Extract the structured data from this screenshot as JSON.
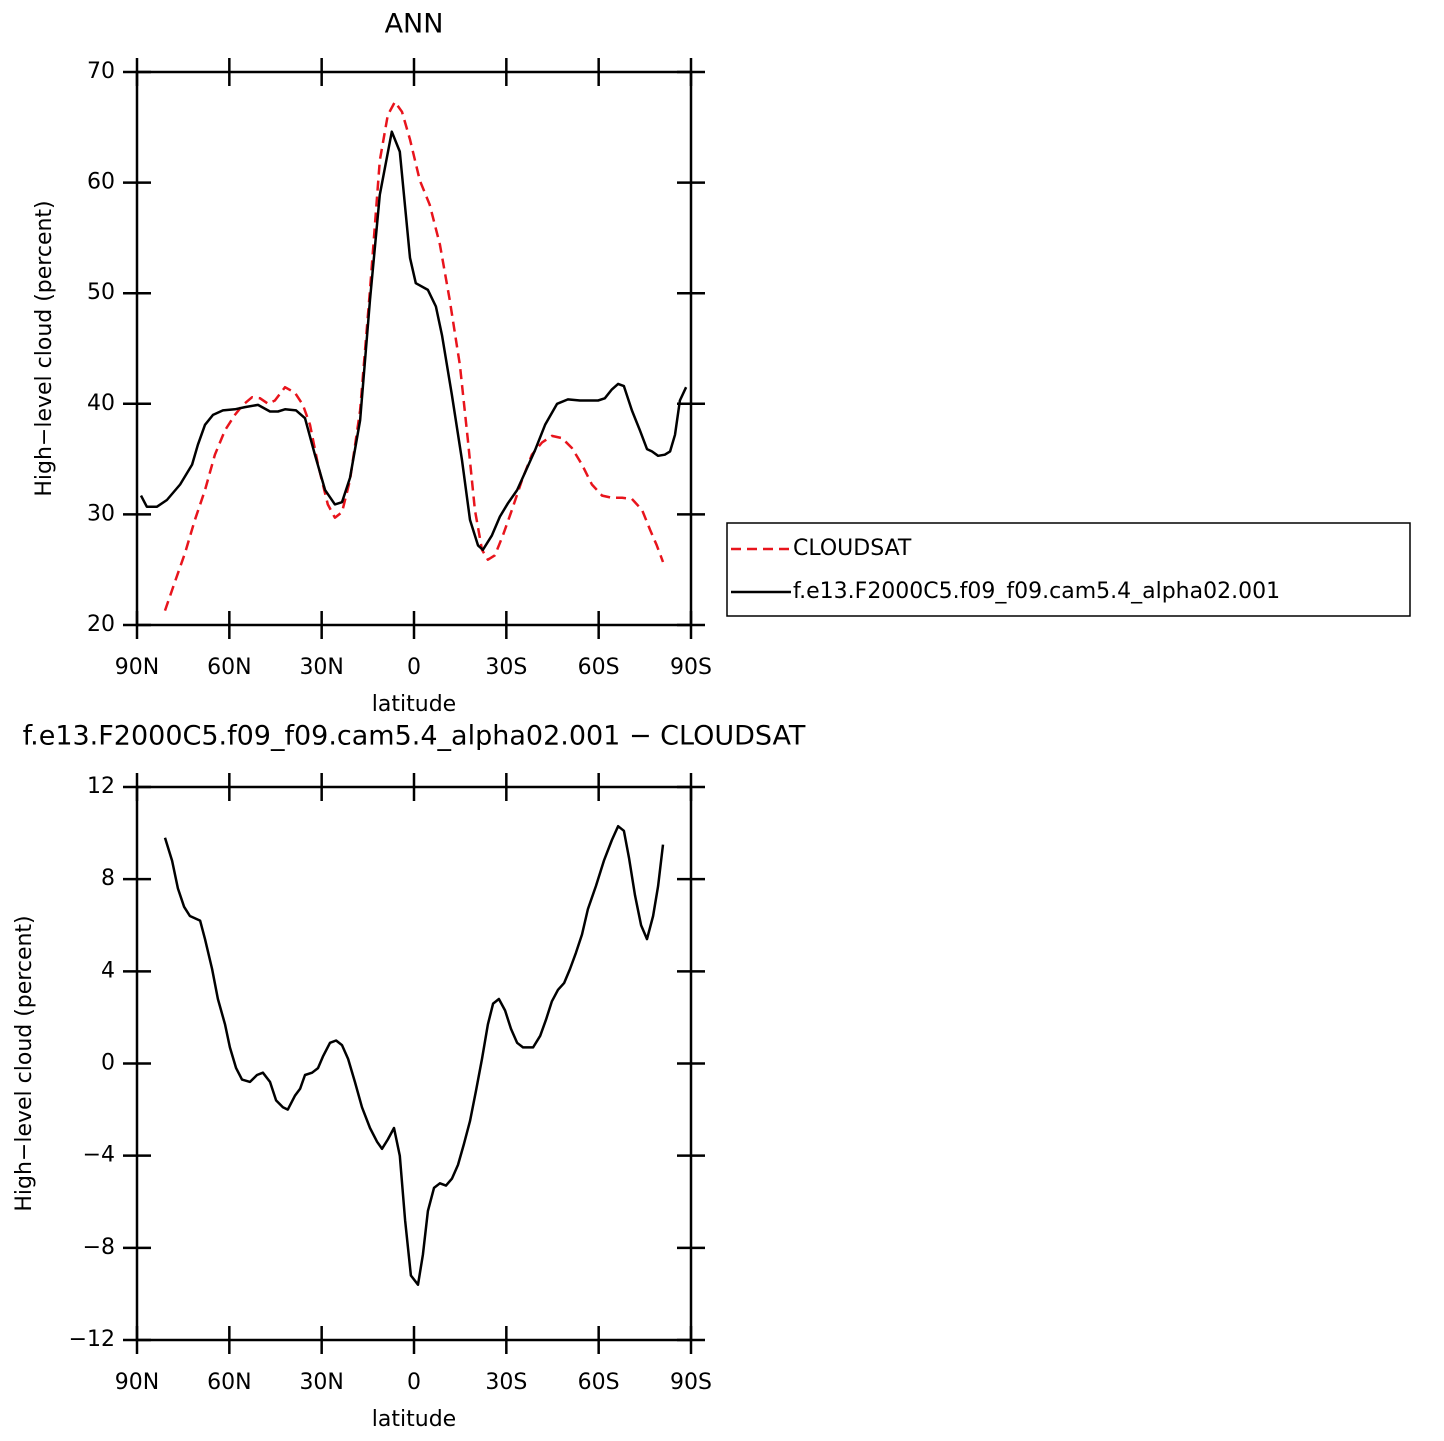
{
  "chart_data": [
    {
      "type": "line",
      "title": "ANN",
      "xlabel": "latitude",
      "ylabel": "High−level cloud (percent)",
      "xlim": [
        90,
        -90
      ],
      "xticks": [
        {
          "value": 90,
          "label": "90N"
        },
        {
          "value": 60,
          "label": "60N"
        },
        {
          "value": 30,
          "label": "30N"
        },
        0,
        {
          "value": -30,
          "label": "30S"
        },
        {
          "value": -60,
          "label": "60S"
        },
        {
          "value": -90,
          "label": "90S"
        }
      ],
      "ylim": [
        20,
        70
      ],
      "yticks": [
        20,
        30,
        40,
        50,
        60,
        70
      ],
      "legend": "right",
      "series": [
        {
          "name": "CLOUDSAT",
          "color": "#e8141c",
          "linestyle": "dashed",
          "x": [
            80.9,
            77.7,
            74.4,
            71.2,
            67.9,
            64.7,
            61.4,
            58.2,
            55.6,
            52.6,
            50.0,
            47.4,
            45.2,
            41.9,
            38.7,
            36.1,
            33.8,
            31.2,
            28.0,
            25.7,
            23.4,
            20.8,
            17.5,
            14.3,
            11.1,
            8.5,
            6.2,
            3.9,
            1.3,
            -1.9,
            -5.1,
            -8.4,
            -11.6,
            -14.9,
            -17.5,
            -19.8,
            -22.1,
            -24.0,
            -26.3,
            -28.9,
            -31.8,
            -35.1,
            -38.3,
            -41.6,
            -44.8,
            -48.1,
            -51.3,
            -54.6,
            -57.8,
            -61.1,
            -64.3,
            -67.6,
            -70.8,
            -74.1,
            -76.7,
            -78.9,
            -80.9
          ],
          "values": [
            21.3,
            23.9,
            26.5,
            29.5,
            32.2,
            35.4,
            37.6,
            39.0,
            39.9,
            40.6,
            40.5,
            40.0,
            40.3,
            41.5,
            41.0,
            39.9,
            38.1,
            34.5,
            30.9,
            29.7,
            30.2,
            33.1,
            39.4,
            50.3,
            62.0,
            66.1,
            67.3,
            66.4,
            63.9,
            60.2,
            58.0,
            54.4,
            49.4,
            43.5,
            36.7,
            30.4,
            26.8,
            25.9,
            26.3,
            28.1,
            30.4,
            33.1,
            35.4,
            36.5,
            37.1,
            36.9,
            36.0,
            34.5,
            32.7,
            31.7,
            31.5,
            31.5,
            31.4,
            30.4,
            28.6,
            27.2,
            25.7
          ]
        },
        {
          "name": "f.e13.F2000C5.f09_f09.cam5.4_alpha02.001",
          "color": "#000000",
          "linestyle": "solid",
          "x": [
            88.7,
            86.8,
            83.5,
            80.3,
            76.0,
            72.1,
            70.2,
            67.9,
            65.3,
            62.1,
            58.2,
            54.9,
            50.7,
            46.8,
            44.2,
            41.9,
            38.3,
            35.4,
            32.2,
            28.9,
            25.7,
            23.4,
            20.8,
            17.5,
            14.3,
            11.1,
            7.2,
            4.6,
            1.3,
            -0.6,
            -4.5,
            -7.1,
            -9.1,
            -12.3,
            -15.6,
            -18.2,
            -20.8,
            -22.4,
            -25.3,
            -27.9,
            -30.5,
            -33.5,
            -36.1,
            -39.3,
            -42.6,
            -46.5,
            -50.0,
            -53.9,
            -57.2,
            -59.8,
            -62.0,
            -64.3,
            -66.3,
            -68.2,
            -70.8,
            -73.4,
            -75.7,
            -77.3,
            -79.3,
            -81.5,
            -83.2,
            -84.8,
            -86.4,
            -88.4
          ],
          "values": [
            31.7,
            30.7,
            30.7,
            31.3,
            32.7,
            34.5,
            36.3,
            38.1,
            39.0,
            39.4,
            39.5,
            39.7,
            39.9,
            39.3,
            39.3,
            39.5,
            39.4,
            38.7,
            35.4,
            32.2,
            30.9,
            31.1,
            33.3,
            38.5,
            49.4,
            58.9,
            64.6,
            62.8,
            53.2,
            50.9,
            50.3,
            48.8,
            46.2,
            40.8,
            34.9,
            29.5,
            27.2,
            26.8,
            28.1,
            29.8,
            31.0,
            32.2,
            33.8,
            35.8,
            38.1,
            40.0,
            40.4,
            40.3,
            40.3,
            40.3,
            40.5,
            41.3,
            41.8,
            41.6,
            39.4,
            37.6,
            35.9,
            35.7,
            35.3,
            35.4,
            35.7,
            37.2,
            40.3,
            41.5
          ]
        }
      ]
    },
    {
      "type": "line",
      "title": "f.e13.F2000C5.f09_f09.cam5.4_alpha02.001 − CLOUDSAT",
      "xlabel": "latitude",
      "ylabel": "High−level cloud (percent)",
      "xlim": [
        90,
        -90
      ],
      "xticks": [
        {
          "value": 90,
          "label": "90N"
        },
        {
          "value": 60,
          "label": "60N"
        },
        {
          "value": 30,
          "label": "30N"
        },
        0,
        {
          "value": -30,
          "label": "30S"
        },
        {
          "value": -60,
          "label": "60S"
        },
        {
          "value": -90,
          "label": "90S"
        }
      ],
      "ylim": [
        -12,
        12
      ],
      "yticks": [
        {
          "value": -12,
          "label": "−12"
        },
        {
          "value": -8,
          "label": "−8"
        },
        {
          "value": -4,
          "label": "−4"
        },
        0,
        4,
        8,
        12
      ],
      "series": [
        {
          "color": "#000000",
          "linestyle": "solid",
          "x": [
            80.9,
            78.6,
            76.7,
            74.7,
            72.8,
            69.5,
            67.9,
            65.6,
            63.7,
            61.4,
            59.8,
            57.8,
            55.9,
            53.3,
            51.0,
            49.1,
            46.8,
            44.8,
            42.6,
            41.0,
            38.7,
            37.0,
            35.4,
            33.1,
            31.2,
            29.6,
            27.3,
            25.3,
            23.4,
            21.4,
            19.2,
            16.9,
            14.3,
            12.0,
            10.4,
            8.5,
            6.5,
            4.6,
            2.9,
            1.0,
            -1.3,
            -2.9,
            -4.5,
            -6.5,
            -8.4,
            -10.4,
            -12.3,
            -14.3,
            -16.2,
            -18.2,
            -20.1,
            -22.1,
            -24.0,
            -25.7,
            -27.6,
            -29.6,
            -31.5,
            -33.5,
            -35.4,
            -38.7,
            -41.0,
            -42.9,
            -44.8,
            -46.8,
            -48.8,
            -50.7,
            -52.6,
            -54.6,
            -56.5,
            -59.1,
            -61.7,
            -64.3,
            -66.3,
            -68.2,
            -69.9,
            -71.8,
            -73.8,
            -75.7,
            -77.7,
            -79.3,
            -80.9
          ],
          "values": [
            9.8,
            8.8,
            7.6,
            6.8,
            6.4,
            6.2,
            5.4,
            4.1,
            2.8,
            1.7,
            0.7,
            -0.2,
            -0.7,
            -0.8,
            -0.5,
            -0.4,
            -0.8,
            -1.6,
            -1.9,
            -2.0,
            -1.4,
            -1.1,
            -0.5,
            -0.4,
            -0.2,
            0.3,
            0.9,
            1.0,
            0.8,
            0.2,
            -0.8,
            -1.9,
            -2.8,
            -3.4,
            -3.7,
            -3.3,
            -2.8,
            -4.0,
            -6.8,
            -9.2,
            -9.6,
            -8.3,
            -6.4,
            -5.4,
            -5.2,
            -5.3,
            -5.0,
            -4.4,
            -3.5,
            -2.5,
            -1.2,
            0.2,
            1.7,
            2.6,
            2.8,
            2.3,
            1.5,
            0.9,
            0.7,
            0.7,
            1.2,
            1.9,
            2.7,
            3.2,
            3.5,
            4.1,
            4.8,
            5.6,
            6.7,
            7.7,
            8.8,
            9.7,
            10.3,
            10.1,
            8.9,
            7.3,
            6.0,
            5.4,
            6.4,
            7.7,
            9.5
          ]
        }
      ]
    }
  ]
}
